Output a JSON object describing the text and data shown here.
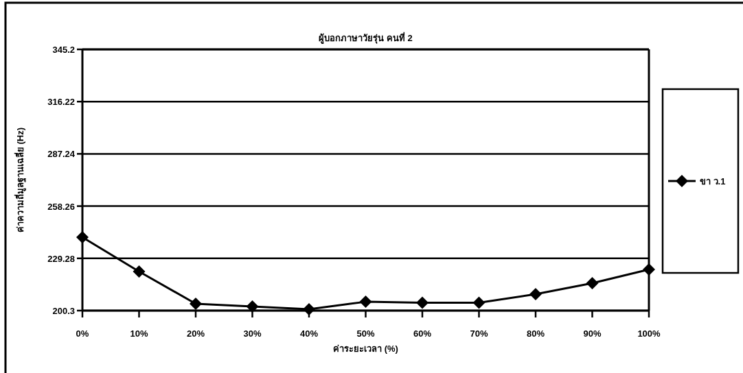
{
  "chart_data": {
    "type": "line",
    "title": "ผู้บอกภาษาวัยรุ่น คนที่ 2",
    "xlabel": "ค่าระยะเวลา (%)",
    "ylabel": "ค่าความถี่มูลฐานเฉลี่ย (Hz)",
    "categories": [
      "0%",
      "10%",
      "20%",
      "30%",
      "40%",
      "50%",
      "60%",
      "70%",
      "80%",
      "90%",
      "100%"
    ],
    "series": [
      {
        "name": "ขา ว.1",
        "color": "#000000",
        "values": [
          241.0,
          222.0,
          204.1,
          202.6,
          201.1,
          205.2,
          204.7,
          204.7,
          209.4,
          215.5,
          223.1
        ]
      }
    ],
    "ylim": [
      200.3,
      345.2
    ],
    "yticks": [
      200.3,
      229.28,
      258.26,
      287.24,
      316.22,
      345.2
    ],
    "grid": "y",
    "legend": "right",
    "marker": "diamond",
    "line_style": "solid"
  }
}
